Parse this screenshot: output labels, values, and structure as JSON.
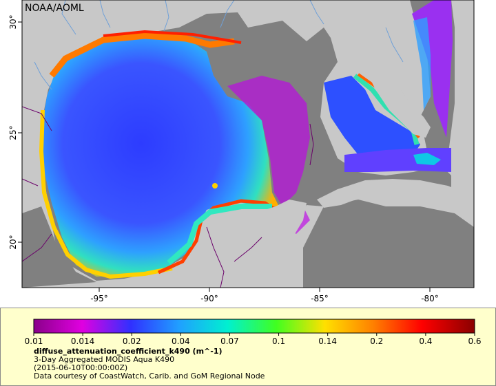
{
  "credit": "NOAA/AOML",
  "map": {
    "lon_ticks": [
      "-95°",
      "-90°",
      "-85°",
      "-80°"
    ],
    "lat_ticks": [
      "30°",
      "25°",
      "20°"
    ]
  },
  "colorbar": {
    "ticks": [
      "0.01",
      "0.014",
      "0.02",
      "0.04",
      "0.07",
      "0.1",
      "0.14",
      "0.2",
      "0.4",
      "0.6"
    ],
    "colors": [
      "#8a008a",
      "#e000e0",
      "#3030ff",
      "#20a0ff",
      "#00f0d0",
      "#40ff20",
      "#ffe000",
      "#ff8000",
      "#ff0000",
      "#8a0000"
    ]
  },
  "legend": {
    "variable": "diffuse_attenuation_coefficient_k490 (m^-1)",
    "description": "3-Day Aggregated MODIS Aqua K490",
    "date": "(2015-06-10T00:00:00Z)",
    "source": "Data courtesy of CoastWatch, Carib. and GoM Regional Node"
  },
  "palette": {
    "land": "#c8c8c8",
    "no_data": "#808080",
    "border": "#6a006a",
    "river": "#6fa0d8"
  }
}
